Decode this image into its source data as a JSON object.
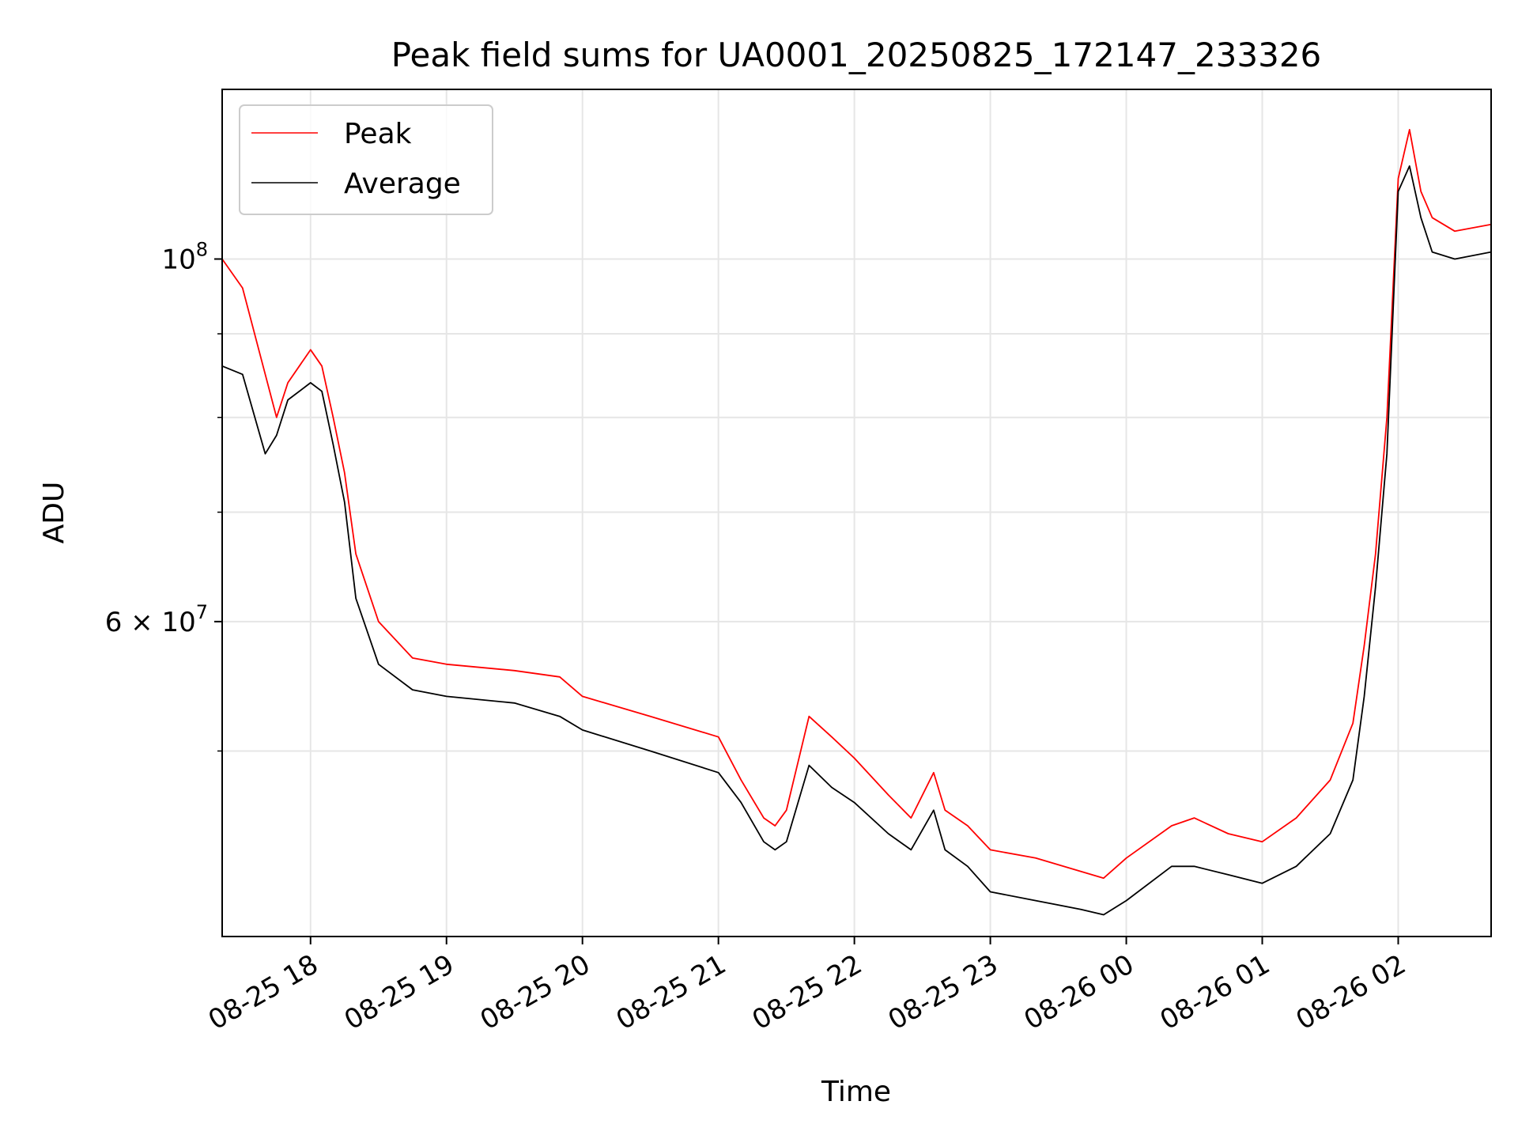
{
  "chart_data": {
    "type": "line",
    "title": "Peak field sums for UA0001_20250825_172147_233326",
    "xlabel": "Time",
    "ylabel": "ADU",
    "yscale": "log",
    "ylim": [
      38500000,
      127000000
    ],
    "xlim": [
      "2025-08-25 17:21",
      "2025-08-26 02:41"
    ],
    "grid": true,
    "legend_position": "top-left",
    "x_ticks": [
      {
        "value": "2025-08-25 18:00",
        "label": "08-25 18"
      },
      {
        "value": "2025-08-25 19:00",
        "label": "08-25 19"
      },
      {
        "value": "2025-08-25 20:00",
        "label": "08-25 20"
      },
      {
        "value": "2025-08-25 21:00",
        "label": "08-25 21"
      },
      {
        "value": "2025-08-25 22:00",
        "label": "08-25 22"
      },
      {
        "value": "2025-08-25 23:00",
        "label": "08-25 23"
      },
      {
        "value": "2025-08-26 00:00",
        "label": "08-26 00"
      },
      {
        "value": "2025-08-26 01:00",
        "label": "08-26 01"
      },
      {
        "value": "2025-08-26 02:00",
        "label": "08-26 02"
      }
    ],
    "y_ticks": [
      {
        "value": 100000000,
        "base": "10",
        "exp": "8"
      },
      {
        "value": 60000000,
        "base": "6 × 10",
        "exp": "7"
      }
    ],
    "y_minor_gridlines": [
      50000000,
      70000000,
      80000000,
      90000000
    ],
    "x": [
      "2025-08-25 17:21",
      "2025-08-25 17:30",
      "2025-08-25 17:40",
      "2025-08-25 17:45",
      "2025-08-25 17:50",
      "2025-08-25 18:00",
      "2025-08-25 18:05",
      "2025-08-25 18:10",
      "2025-08-25 18:15",
      "2025-08-25 18:20",
      "2025-08-25 18:30",
      "2025-08-25 18:45",
      "2025-08-25 19:00",
      "2025-08-25 19:30",
      "2025-08-25 19:50",
      "2025-08-25 20:00",
      "2025-08-25 20:30",
      "2025-08-25 21:00",
      "2025-08-25 21:10",
      "2025-08-25 21:20",
      "2025-08-25 21:25",
      "2025-08-25 21:30",
      "2025-08-25 21:40",
      "2025-08-25 21:50",
      "2025-08-25 22:00",
      "2025-08-25 22:15",
      "2025-08-25 22:25",
      "2025-08-25 22:35",
      "2025-08-25 22:40",
      "2025-08-25 22:50",
      "2025-08-25 23:00",
      "2025-08-25 23:20",
      "2025-08-25 23:40",
      "2025-08-25 23:50",
      "2025-08-26 00:00",
      "2025-08-26 00:20",
      "2025-08-26 00:30",
      "2025-08-26 00:45",
      "2025-08-26 01:00",
      "2025-08-26 01:15",
      "2025-08-26 01:30",
      "2025-08-26 01:40",
      "2025-08-26 01:45",
      "2025-08-26 01:50",
      "2025-08-26 01:55",
      "2025-08-26 02:00",
      "2025-08-26 02:05",
      "2025-08-26 02:10",
      "2025-08-26 02:15",
      "2025-08-26 02:25",
      "2025-08-26 02:41"
    ],
    "series": [
      {
        "name": "Peak",
        "color": "#ff0000",
        "values": [
          100000000,
          96000000,
          85000000,
          80000000,
          84000000,
          88000000,
          86000000,
          80000000,
          74000000,
          66000000,
          60000000,
          57000000,
          56500000,
          56000000,
          55500000,
          54000000,
          52500000,
          51000000,
          48000000,
          45500000,
          45000000,
          46000000,
          52500000,
          51000000,
          49500000,
          47000000,
          45500000,
          48500000,
          46000000,
          45000000,
          43500000,
          43000000,
          42200000,
          41800000,
          43000000,
          45000000,
          45500000,
          44500000,
          44000000,
          45500000,
          48000000,
          52000000,
          58000000,
          66000000,
          80000000,
          112000000,
          120000000,
          110000000,
          106000000,
          104000000,
          105000000
        ]
      },
      {
        "name": "Average",
        "color": "#000000",
        "values": [
          86000000,
          85000000,
          76000000,
          78000000,
          82000000,
          84000000,
          83000000,
          77000000,
          71000000,
          62000000,
          56500000,
          54500000,
          54000000,
          53500000,
          52500000,
          51500000,
          50000000,
          48500000,
          46500000,
          44000000,
          43500000,
          44000000,
          49000000,
          47500000,
          46500000,
          44500000,
          43500000,
          46000000,
          43500000,
          42500000,
          41000000,
          40500000,
          40000000,
          39700000,
          40500000,
          42500000,
          42500000,
          42000000,
          41500000,
          42500000,
          44500000,
          48000000,
          54000000,
          63000000,
          76000000,
          110000000,
          114000000,
          106000000,
          101000000,
          100000000,
          101000000
        ]
      }
    ]
  }
}
